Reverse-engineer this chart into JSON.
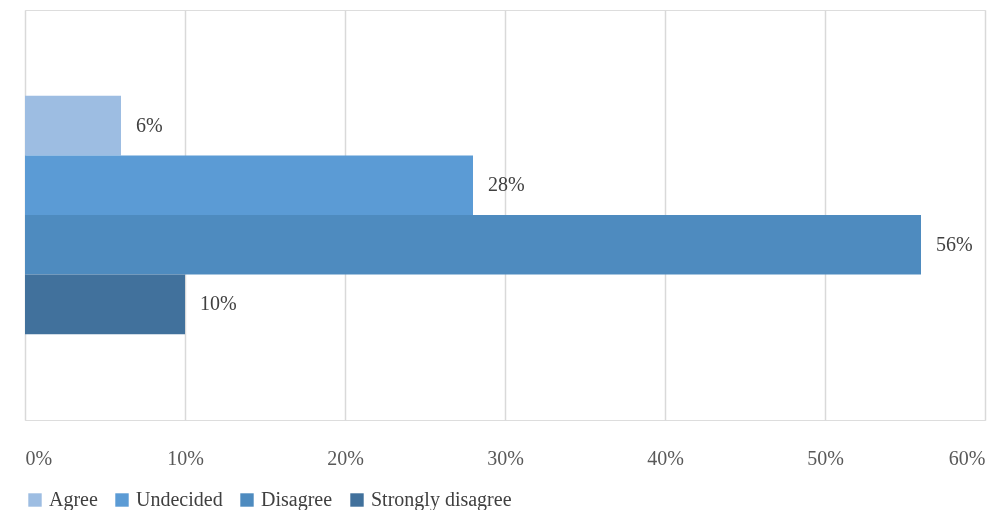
{
  "chart_data": {
    "type": "bar",
    "orientation": "horizontal",
    "categories": [
      null
    ],
    "series": [
      {
        "name": "Agree",
        "color": "#9dbde2",
        "values": [
          6
        ],
        "value_labels": [
          "6%"
        ]
      },
      {
        "name": "Undecided",
        "color": "#5b9bd5",
        "values": [
          28
        ],
        "value_labels": [
          "28%"
        ]
      },
      {
        "name": "Disagree",
        "color": "#4e8bbf",
        "values": [
          56
        ],
        "value_labels": [
          "56%"
        ]
      },
      {
        "name": "Strongly disagree",
        "color": "#41719c",
        "values": [
          10
        ],
        "value_labels": [
          "10%"
        ]
      }
    ],
    "xlim": [
      0,
      60
    ],
    "xticks": [
      {
        "value": 0,
        "label": "0%"
      },
      {
        "value": 10,
        "label": "10%"
      },
      {
        "value": 20,
        "label": "20%"
      },
      {
        "value": 30,
        "label": "30%"
      },
      {
        "value": 40,
        "label": "40%"
      },
      {
        "value": 50,
        "label": "50%"
      },
      {
        "value": 60,
        "label": "60%"
      }
    ],
    "grid": "x",
    "legend": "bottom"
  }
}
